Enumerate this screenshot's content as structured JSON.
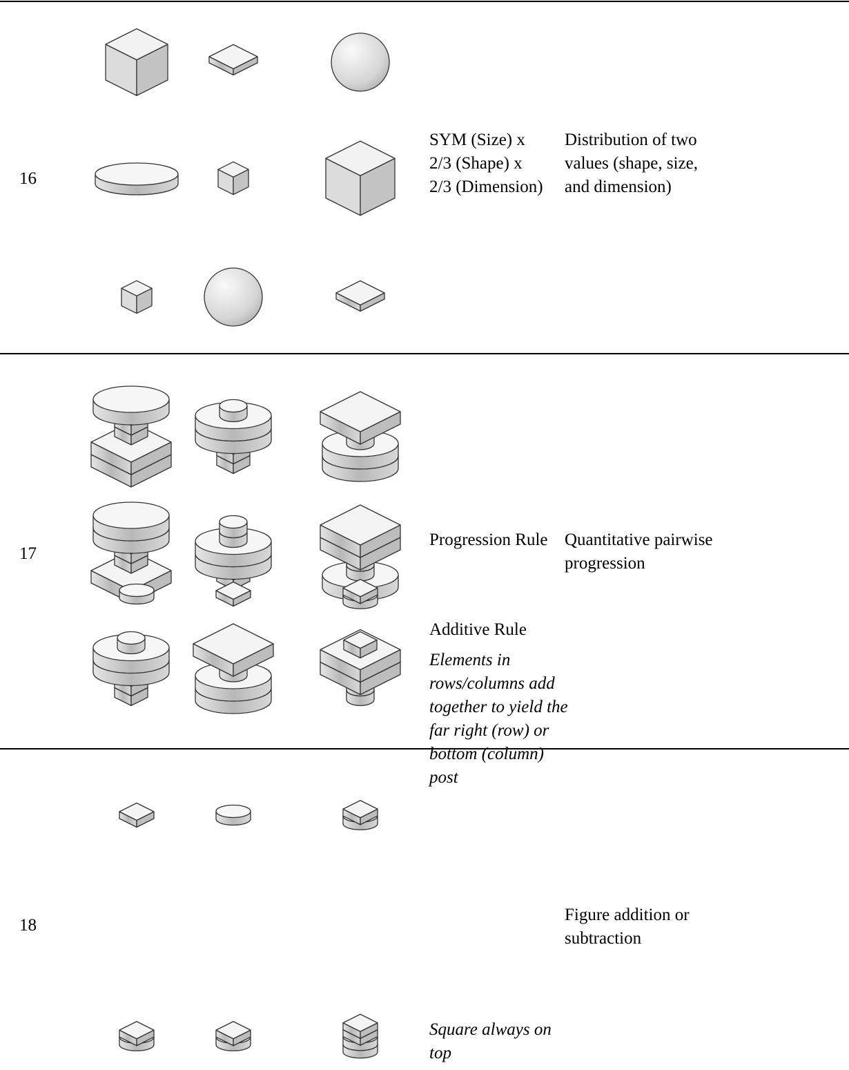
{
  "rows": [
    {
      "number": "16",
      "rule": [
        "SYM (Size) x",
        "2/3 (Shape) x",
        "2/3 (Dimension)"
      ],
      "description": [
        "Distribution of two",
        "values (shape, size,",
        "and dimension)"
      ]
    },
    {
      "number": "17",
      "rule": [
        "Progression Rule"
      ],
      "description": [
        "Quantitative pairwise",
        "progression"
      ]
    },
    {
      "number": "18",
      "rule": [
        "Additive Rule"
      ],
      "notes": [
        [
          "Elements in",
          "rows/columns add",
          "together to yield the",
          "far right (row) or",
          "bottom (column)",
          "post"
        ],
        [
          "Square always on",
          "top"
        ]
      ],
      "description": [
        "Figure addition or",
        "subtraction"
      ]
    }
  ]
}
